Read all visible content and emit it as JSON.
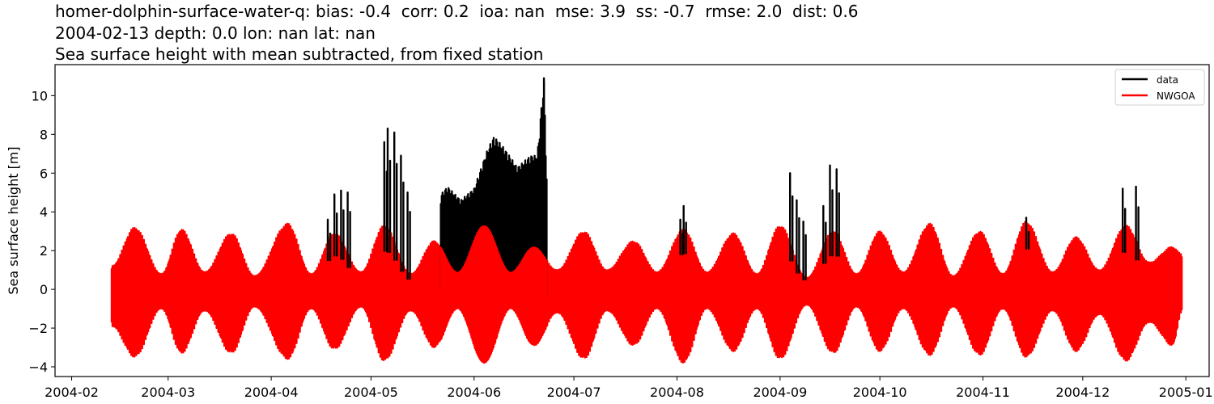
{
  "figure": {
    "title_line1": "homer-dolphin-surface-water-q: bias: -0.4  corr: 0.2  ioa: nan  mse: 3.9  ss: -0.7  rmse: 2.0  dist: 0.6",
    "title_line2": "2004-02-13 depth: 0.0 lon: nan lat: nan",
    "title_line3": "Sea surface height with mean subtracted, from fixed station"
  },
  "chart_data": {
    "type": "line",
    "title": "homer-dolphin-surface-water-q: bias: -0.4  corr: 0.2  ioa: nan  mse: 3.9  ss: -0.7  rmse: 2.0  dist: 0.6 / 2004-02-13 depth: 0.0 lon: nan lat: nan / Sea surface height with mean subtracted, from fixed station",
    "xlabel": "",
    "ylabel": "Sea surface height [m]",
    "ylim": [
      -4.5,
      11.6
    ],
    "xlim": [
      "2004-01-27",
      "2005-01-08"
    ],
    "grid": false,
    "legend_position": "upper right",
    "x_tick_labels": [
      "2004-02",
      "2004-03",
      "2004-04",
      "2004-05",
      "2004-06",
      "2004-07",
      "2004-08",
      "2004-09",
      "2004-10",
      "2004-11",
      "2004-12",
      "2005-01"
    ],
    "y_tick_labels": [
      "−4",
      "−2",
      "0",
      "2",
      "4",
      "6",
      "8",
      "10"
    ],
    "y_ticks": [
      -4,
      -2,
      0,
      2,
      4,
      6,
      8,
      10
    ],
    "x_range_data": [
      "2004-02-13",
      "2004-12-31"
    ],
    "series": [
      {
        "name": "data",
        "color": "#000000",
        "description": "Observed tidal sea surface height; mostly hidden beneath model except spikes/offset periods",
        "envelope_max_points": [
          {
            "x": "2004-04-18",
            "y": 3.6
          },
          {
            "x": "2004-04-20",
            "y": 4.9
          },
          {
            "x": "2004-04-22",
            "y": 5.1
          },
          {
            "x": "2004-04-24",
            "y": 5.0
          },
          {
            "x": "2004-05-05",
            "y": 7.6
          },
          {
            "x": "2004-05-06",
            "y": 8.3
          },
          {
            "x": "2004-05-08",
            "y": 8.1
          },
          {
            "x": "2004-05-10",
            "y": 6.9
          },
          {
            "x": "2004-05-12",
            "y": 5.0
          },
          {
            "x": "2004-05-22",
            "y": 4.9
          },
          {
            "x": "2004-05-24",
            "y": 5.3
          },
          {
            "x": "2004-05-28",
            "y": 4.6
          },
          {
            "x": "2004-06-01",
            "y": 5.2
          },
          {
            "x": "2004-06-05",
            "y": 7.2
          },
          {
            "x": "2004-06-07",
            "y": 7.9
          },
          {
            "x": "2004-06-10",
            "y": 7.3
          },
          {
            "x": "2004-06-14",
            "y": 6.3
          },
          {
            "x": "2004-06-18",
            "y": 6.9
          },
          {
            "x": "2004-06-20",
            "y": 6.9
          },
          {
            "x": "2004-06-22",
            "y": 10.9
          },
          {
            "x": "2004-06-23",
            "y": 4.6
          },
          {
            "x": "2004-08-02",
            "y": 3.6
          },
          {
            "x": "2004-08-03",
            "y": 4.3
          },
          {
            "x": "2004-09-04",
            "y": 6.0
          },
          {
            "x": "2004-09-06",
            "y": 4.6
          },
          {
            "x": "2004-09-08",
            "y": 3.5
          },
          {
            "x": "2004-09-14",
            "y": 4.3
          },
          {
            "x": "2004-09-16",
            "y": 6.4
          },
          {
            "x": "2004-09-18",
            "y": 6.2
          },
          {
            "x": "2004-11-14",
            "y": 3.7
          },
          {
            "x": "2004-12-13",
            "y": 5.2
          },
          {
            "x": "2004-12-17",
            "y": 5.3
          }
        ],
        "offset_period": {
          "start": "2004-05-22",
          "end": "2004-06-23",
          "min": 0.0,
          "max": 8.0
        }
      },
      {
        "name": "NWGOA",
        "color": "#ff0000",
        "description": "Model tidal sea surface height with spring-neap modulation",
        "spring_neap_envelope": [
          {
            "x": "2004-02-13",
            "max": 1.2,
            "min": -1.9
          },
          {
            "x": "2004-02-20",
            "max": 3.2,
            "min": -3.5
          },
          {
            "x": "2004-02-28",
            "max": 0.8,
            "min": -1.0
          },
          {
            "x": "2004-03-05",
            "max": 3.1,
            "min": -3.3
          },
          {
            "x": "2004-03-12",
            "max": 0.9,
            "min": -1.1
          },
          {
            "x": "2004-03-20",
            "max": 2.9,
            "min": -3.3
          },
          {
            "x": "2004-03-27",
            "max": 0.7,
            "min": -0.9
          },
          {
            "x": "2004-04-06",
            "max": 3.4,
            "min": -3.6
          },
          {
            "x": "2004-04-13",
            "max": 0.8,
            "min": -1.0
          },
          {
            "x": "2004-04-20",
            "max": 2.9,
            "min": -3.1
          },
          {
            "x": "2004-04-28",
            "max": 0.9,
            "min": -0.9
          },
          {
            "x": "2004-05-05",
            "max": 3.3,
            "min": -3.7
          },
          {
            "x": "2004-05-13",
            "max": 0.8,
            "min": -1.1
          },
          {
            "x": "2004-05-20",
            "max": 2.5,
            "min": -3.0
          },
          {
            "x": "2004-05-27",
            "max": 0.9,
            "min": -1.0
          },
          {
            "x": "2004-06-04",
            "max": 3.3,
            "min": -3.8
          },
          {
            "x": "2004-06-12",
            "max": 0.9,
            "min": -1.0
          },
          {
            "x": "2004-06-19",
            "max": 2.2,
            "min": -2.9
          },
          {
            "x": "2004-06-26",
            "max": 1.0,
            "min": -1.2
          },
          {
            "x": "2004-07-04",
            "max": 3.0,
            "min": -3.6
          },
          {
            "x": "2004-07-11",
            "max": 1.0,
            "min": -1.1
          },
          {
            "x": "2004-07-19",
            "max": 2.5,
            "min": -2.9
          },
          {
            "x": "2004-07-26",
            "max": 0.9,
            "min": -1.0
          },
          {
            "x": "2004-08-03",
            "max": 3.1,
            "min": -3.8
          },
          {
            "x": "2004-08-10",
            "max": 0.9,
            "min": -1.0
          },
          {
            "x": "2004-08-18",
            "max": 2.9,
            "min": -3.2
          },
          {
            "x": "2004-08-25",
            "max": 0.8,
            "min": -1.0
          },
          {
            "x": "2004-09-01",
            "max": 3.3,
            "min": -3.6
          },
          {
            "x": "2004-09-09",
            "max": 0.6,
            "min": -0.8
          },
          {
            "x": "2004-09-17",
            "max": 3.0,
            "min": -3.3
          },
          {
            "x": "2004-09-24",
            "max": 0.8,
            "min": -0.9
          },
          {
            "x": "2004-10-01",
            "max": 3.0,
            "min": -3.2
          },
          {
            "x": "2004-10-08",
            "max": 0.9,
            "min": -1.0
          },
          {
            "x": "2004-10-16",
            "max": 3.4,
            "min": -3.4
          },
          {
            "x": "2004-10-23",
            "max": 0.7,
            "min": -0.9
          },
          {
            "x": "2004-10-31",
            "max": 3.0,
            "min": -3.4
          },
          {
            "x": "2004-11-07",
            "max": 0.8,
            "min": -1.0
          },
          {
            "x": "2004-11-14",
            "max": 3.5,
            "min": -3.5
          },
          {
            "x": "2004-11-22",
            "max": 0.9,
            "min": -1.1
          },
          {
            "x": "2004-11-29",
            "max": 2.7,
            "min": -3.2
          },
          {
            "x": "2004-12-06",
            "max": 1.0,
            "min": -1.3
          },
          {
            "x": "2004-12-14",
            "max": 3.3,
            "min": -3.7
          },
          {
            "x": "2004-12-21",
            "max": 1.4,
            "min": -1.7
          },
          {
            "x": "2004-12-28",
            "max": 2.2,
            "min": -2.9
          },
          {
            "x": "2004-12-31",
            "max": 1.8,
            "min": -1.1
          }
        ]
      }
    ],
    "legend": [
      {
        "label": "data",
        "color": "#000000"
      },
      {
        "label": "NWGOA",
        "color": "#ff0000"
      }
    ]
  }
}
